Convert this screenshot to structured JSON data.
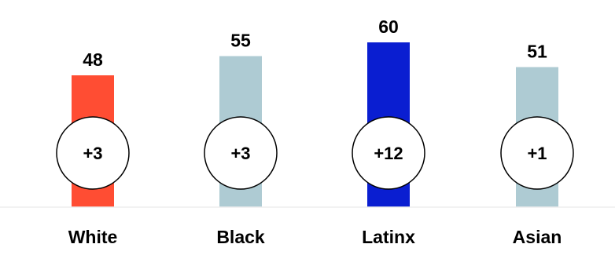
{
  "chart_data": {
    "type": "bar",
    "title": "",
    "xlabel": "",
    "ylabel": "",
    "ylim": [
      0,
      60
    ],
    "grid": false,
    "legend": "none",
    "categories": [
      "White",
      "Black",
      "Latinx",
      "Asian"
    ],
    "values": [
      48,
      55,
      60,
      51
    ],
    "value_labels": [
      "48",
      "55",
      "60",
      "51"
    ],
    "changes": [
      "+3",
      "+3",
      "+12",
      "+1"
    ],
    "bar_colors": [
      "#ff4d33",
      "#aecbd3",
      "#0a1ed1",
      "#aecbd3"
    ],
    "baseline_color": "#eeeeee",
    "badge_fill": "#ffffff",
    "badge_stroke": "#000000"
  }
}
